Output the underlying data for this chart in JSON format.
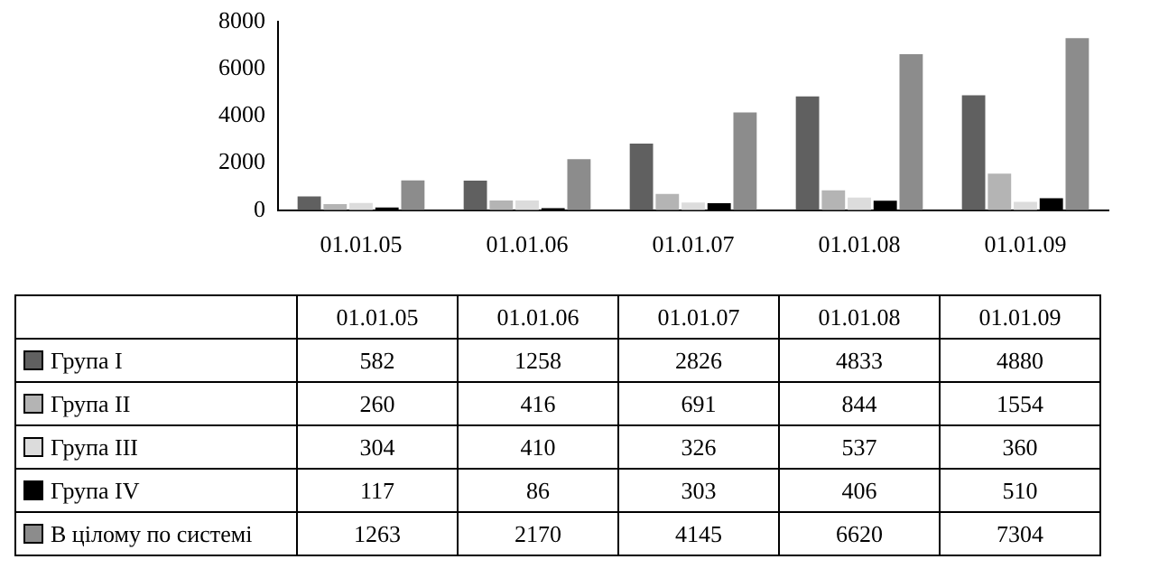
{
  "chart_data": {
    "type": "bar",
    "categories": [
      "01.01.05",
      "01.01.06",
      "01.01.07",
      "01.01.08",
      "01.01.09"
    ],
    "series": [
      {
        "name": "Група I",
        "color": "#606060",
        "values": [
          582,
          1258,
          2826,
          4833,
          4880
        ]
      },
      {
        "name": "Група II",
        "color": "#b4b4b4",
        "values": [
          260,
          416,
          691,
          844,
          1554
        ]
      },
      {
        "name": "Група III",
        "color": "#dcdcdc",
        "values": [
          304,
          410,
          326,
          537,
          360
        ]
      },
      {
        "name": "Група IV",
        "color": "#000000",
        "values": [
          117,
          86,
          303,
          406,
          510
        ]
      },
      {
        "name": "В цілому по системі",
        "color": "#8c8c8c",
        "values": [
          1263,
          2170,
          4145,
          6620,
          7304
        ]
      }
    ],
    "ylim": [
      0,
      8000
    ],
    "yticks": [
      0,
      2000,
      4000,
      6000,
      8000
    ],
    "grid": false,
    "legend": "bottom",
    "data_labels": true
  }
}
